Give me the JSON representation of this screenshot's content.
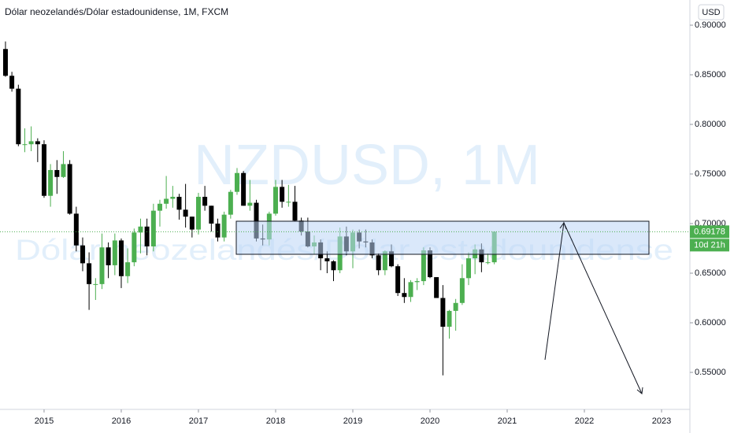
{
  "chart_data": {
    "type": "candlestick",
    "title": "Dólar neozelandés/Dólar estadounidense, 1M, FXCM",
    "watermark_symbol": "NZDUSD, 1M",
    "watermark_name": "Dólar neozelandés/Dólar estadounidense",
    "currency": "USD",
    "last_price": 0.69178,
    "countdown": "10d 21h",
    "up_color": "#4caf50",
    "down_color": "#000000",
    "xlim": [
      2014.429,
      2023.367
    ],
    "xticks": [
      2015,
      2016,
      2017,
      2018,
      2019,
      2020,
      2021,
      2022,
      2023
    ],
    "ylim": [
      0.5127,
      0.9254
    ],
    "yticks": [
      {
        "value": 0.55,
        "label": "0.55000"
      },
      {
        "value": 0.6,
        "label": "0.60000"
      },
      {
        "value": 0.65,
        "label": "0.65000"
      },
      {
        "value": 0.7,
        "label": "0.70000"
      },
      {
        "value": 0.75,
        "label": "0.75000"
      },
      {
        "value": 0.8,
        "label": "0.80000"
      },
      {
        "value": 0.85,
        "label": "0.85000"
      },
      {
        "value": 0.9,
        "label": "0.90000"
      }
    ],
    "x": [
      2014.5,
      2014.583,
      2014.667,
      2014.75,
      2014.833,
      2014.917,
      2015,
      2015.083,
      2015.167,
      2015.25,
      2015.333,
      2015.417,
      2015.5,
      2015.583,
      2015.667,
      2015.75,
      2015.833,
      2015.917,
      2016,
      2016.083,
      2016.167,
      2016.25,
      2016.333,
      2016.417,
      2016.5,
      2016.583,
      2016.667,
      2016.75,
      2016.833,
      2016.917,
      2017,
      2017.083,
      2017.167,
      2017.25,
      2017.333,
      2017.417,
      2017.5,
      2017.583,
      2017.667,
      2017.75,
      2017.833,
      2017.917,
      2018,
      2018.083,
      2018.167,
      2018.25,
      2018.333,
      2018.417,
      2018.5,
      2018.583,
      2018.667,
      2018.75,
      2018.833,
      2018.917,
      2019,
      2019.083,
      2019.167,
      2019.25,
      2019.333,
      2019.417,
      2019.5,
      2019.583,
      2019.667,
      2019.75,
      2019.833,
      2019.917,
      2020,
      2020.083,
      2020.167,
      2020.25,
      2020.333,
      2020.417,
      2020.5,
      2020.583,
      2020.667,
      2020.75,
      2020.833
    ],
    "open": [
      0.876,
      0.849,
      0.836,
      0.78,
      0.78,
      0.783,
      0.78,
      0.728,
      0.754,
      0.747,
      0.76,
      0.71,
      0.678,
      0.66,
      0.639,
      0.639,
      0.676,
      0.658,
      0.683,
      0.647,
      0.661,
      0.691,
      0.697,
      0.677,
      0.713,
      0.72,
      0.725,
      0.727,
      0.714,
      0.707,
      0.694,
      0.727,
      0.718,
      0.7,
      0.686,
      0.709,
      0.732,
      0.751,
      0.718,
      0.721,
      0.685,
      0.684,
      0.71,
      0.737,
      0.722,
      0.722,
      0.703,
      0.692,
      0.677,
      0.681,
      0.665,
      0.662,
      0.653,
      0.687,
      0.672,
      0.691,
      0.682,
      0.681,
      0.668,
      0.653,
      0.672,
      0.657,
      0.63,
      0.626,
      0.641,
      0.642,
      0.673,
      0.646,
      0.625,
      0.596,
      0.612,
      0.62,
      0.645,
      0.665,
      0.674,
      0.661,
      0.661
    ],
    "high": [
      0.8836,
      0.853,
      0.84,
      0.796,
      0.798,
      0.786,
      0.784,
      0.76,
      0.764,
      0.773,
      0.764,
      0.717,
      0.686,
      0.671,
      0.645,
      0.69,
      0.681,
      0.69,
      0.685,
      0.675,
      0.695,
      0.705,
      0.705,
      0.72,
      0.724,
      0.748,
      0.738,
      0.73,
      0.74,
      0.707,
      0.731,
      0.738,
      0.718,
      0.705,
      0.712,
      0.734,
      0.756,
      0.753,
      0.744,
      0.724,
      0.699,
      0.712,
      0.744,
      0.744,
      0.739,
      0.738,
      0.706,
      0.706,
      0.688,
      0.684,
      0.672,
      0.663,
      0.696,
      0.697,
      0.694,
      0.694,
      0.694,
      0.684,
      0.67,
      0.673,
      0.679,
      0.659,
      0.645,
      0.643,
      0.645,
      0.676,
      0.676,
      0.646,
      0.638,
      0.613,
      0.624,
      0.659,
      0.671,
      0.679,
      0.68,
      0.67,
      0.692
    ],
    "low": [
      0.848,
      0.833,
      0.778,
      0.772,
      0.773,
      0.762,
      0.726,
      0.717,
      0.73,
      0.746,
      0.709,
      0.672,
      0.652,
      0.613,
      0.623,
      0.634,
      0.645,
      0.648,
      0.635,
      0.64,
      0.657,
      0.67,
      0.668,
      0.672,
      0.697,
      0.715,
      0.716,
      0.704,
      0.696,
      0.686,
      0.689,
      0.713,
      0.692,
      0.682,
      0.682,
      0.705,
      0.729,
      0.718,
      0.713,
      0.682,
      0.678,
      0.678,
      0.708,
      0.716,
      0.717,
      0.702,
      0.688,
      0.676,
      0.669,
      0.653,
      0.65,
      0.642,
      0.65,
      0.668,
      0.655,
      0.675,
      0.676,
      0.665,
      0.648,
      0.648,
      0.656,
      0.627,
      0.62,
      0.621,
      0.633,
      0.638,
      0.645,
      0.625,
      0.547,
      0.584,
      0.592,
      0.618,
      0.638,
      0.649,
      0.651,
      0.659,
      0.659
    ],
    "close": [
      0.849,
      0.836,
      0.78,
      0.78,
      0.783,
      0.78,
      0.728,
      0.754,
      0.747,
      0.76,
      0.71,
      0.678,
      0.66,
      0.639,
      0.639,
      0.676,
      0.658,
      0.683,
      0.647,
      0.661,
      0.691,
      0.697,
      0.677,
      0.713,
      0.72,
      0.725,
      0.727,
      0.714,
      0.707,
      0.694,
      0.727,
      0.718,
      0.7,
      0.686,
      0.709,
      0.732,
      0.751,
      0.718,
      0.721,
      0.685,
      0.684,
      0.71,
      0.737,
      0.722,
      0.722,
      0.703,
      0.692,
      0.677,
      0.681,
      0.665,
      0.662,
      0.653,
      0.687,
      0.672,
      0.691,
      0.682,
      0.681,
      0.668,
      0.653,
      0.672,
      0.657,
      0.63,
      0.626,
      0.641,
      0.642,
      0.673,
      0.646,
      0.625,
      0.596,
      0.612,
      0.62,
      0.645,
      0.665,
      0.674,
      0.661,
      0.661,
      0.69178
    ]
  }
}
